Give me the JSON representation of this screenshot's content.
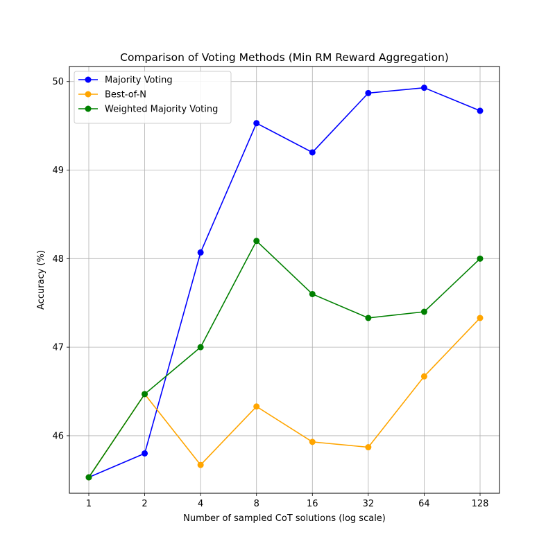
{
  "chart_data": {
    "type": "line",
    "title": "Comparison of Voting Methods (Min RM Reward Aggregation)",
    "xlabel": "Number of sampled CoT solutions (log scale)",
    "ylabel": "Accuracy (%)",
    "x_scale": "log2",
    "x": [
      1,
      2,
      4,
      8,
      16,
      32,
      64,
      128
    ],
    "x_tick_labels": [
      "1",
      "2",
      "4",
      "8",
      "16",
      "32",
      "64",
      "128"
    ],
    "y_ticks": [
      46,
      47,
      48,
      49,
      50
    ],
    "y_tick_labels": [
      "46",
      "47",
      "48",
      "49",
      "50"
    ],
    "ylim": [
      45.35,
      50.17
    ],
    "grid": true,
    "legend_position": "top-left",
    "series": [
      {
        "name": "Majority Voting",
        "color": "#0000ff",
        "values": [
          45.53,
          45.8,
          48.07,
          49.53,
          49.2,
          49.87,
          49.93,
          49.67
        ]
      },
      {
        "name": "Best-of-N",
        "color": "#ffa500",
        "values": [
          45.53,
          46.47,
          45.67,
          46.33,
          45.93,
          45.87,
          46.67,
          47.33
        ]
      },
      {
        "name": "Weighted Majority Voting",
        "color": "#008000",
        "values": [
          45.53,
          46.47,
          47.0,
          48.2,
          47.6,
          47.33,
          47.4,
          48.0
        ]
      }
    ]
  }
}
